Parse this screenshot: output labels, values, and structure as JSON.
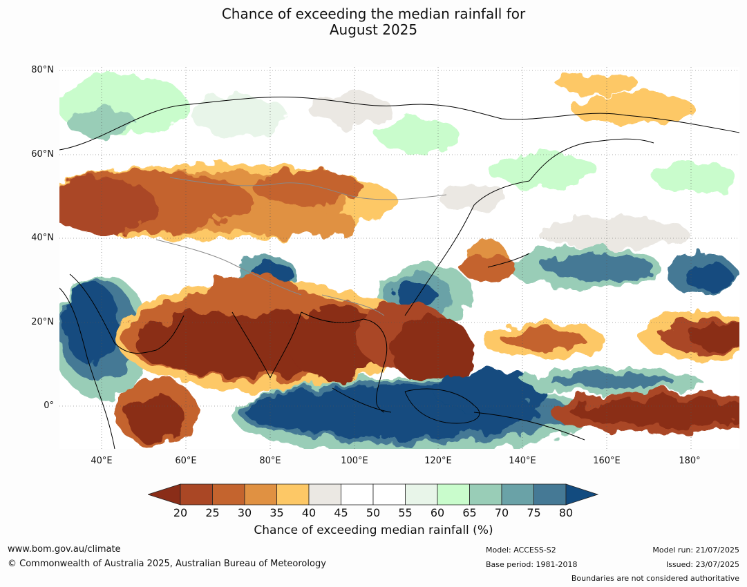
{
  "title_line1": "Chance of exceeding the median rainfall for",
  "title_line2": "August 2025",
  "lat_labels": [
    "80°N",
    "60°N",
    "40°N",
    "20°N",
    "0°"
  ],
  "lon_labels": [
    "40°E",
    "60°E",
    "80°E",
    "100°E",
    "120°E",
    "140°E",
    "160°E",
    "180°"
  ],
  "colorbar": {
    "title": "Chance of exceeding median rainfall (%)",
    "ticks": [
      "20",
      "25",
      "30",
      "35",
      "40",
      "45",
      "50",
      "55",
      "60",
      "65",
      "70",
      "75",
      "80"
    ],
    "colors": [
      "#8a2d18",
      "#aa4725",
      "#c4642e",
      "#e09142",
      "#fdc866",
      "#ebe8e3",
      "#ffffff",
      "#ffffff",
      "#e8f5e9",
      "#c9fccc",
      "#99cdb7",
      "#6aa2a7",
      "#457995",
      "#124b7f"
    ]
  },
  "footer": {
    "website": "www.bom.gov.au/climate",
    "copyright": "© Commonwealth of Australia 2025, Australian Bureau of Meteorology",
    "model": "Model: ACCESS-S2",
    "base_period": "Base period: 1981-2018",
    "model_run": "Model run: 21/07/2025",
    "issued": "Issued: 23/07/2025",
    "boundaries": "Boundaries are not considered authoritative"
  }
}
